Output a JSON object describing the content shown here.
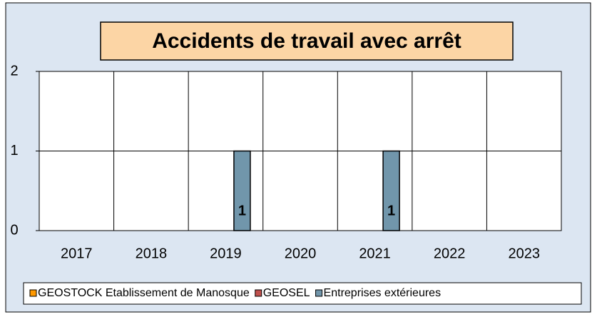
{
  "chart_data": {
    "type": "bar",
    "title": "Accidents de travail avec arrêt",
    "categories": [
      "2017",
      "2018",
      "2019",
      "2020",
      "2021",
      "2022",
      "2023"
    ],
    "series": [
      {
        "name": "GEOSTOCK Etablissement de Manosque",
        "color": "#ff9900",
        "values": [
          0,
          0,
          0,
          0,
          0,
          0,
          0
        ]
      },
      {
        "name": "GEOSEL",
        "color": "#c0504d",
        "values": [
          0,
          0,
          0,
          0,
          0,
          0,
          0
        ]
      },
      {
        "name": "Entreprises extérieures",
        "color": "#7196ab",
        "values": [
          0,
          0,
          1,
          0,
          1,
          0,
          0
        ]
      }
    ],
    "ylim": [
      0,
      2
    ],
    "yticks": [
      0,
      1,
      2
    ],
    "grid": true,
    "legend": "bottom"
  }
}
